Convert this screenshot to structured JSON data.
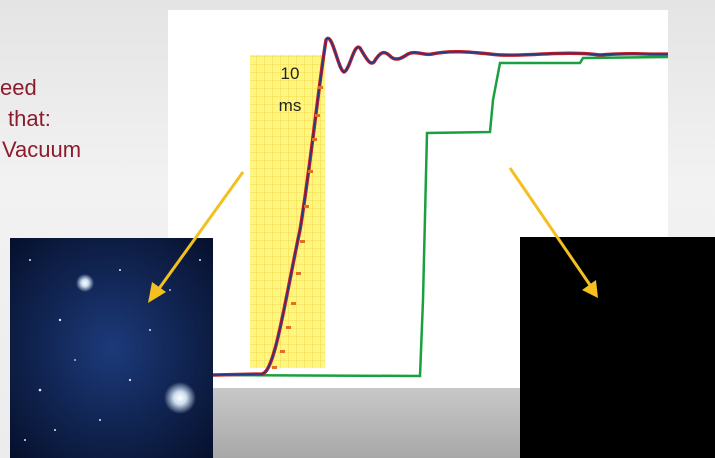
{
  "slide": {
    "text_lines": [
      "eed",
      "that:",
      "Vacuum"
    ],
    "plot_label": [
      "10",
      "ms"
    ]
  }
}
